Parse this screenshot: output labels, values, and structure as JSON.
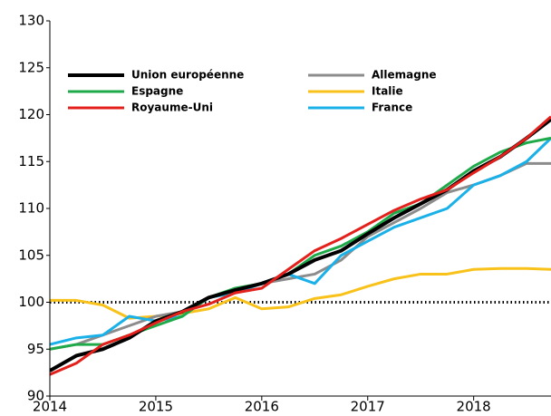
{
  "chart_data": {
    "type": "line",
    "x": [
      2014,
      2014.25,
      2014.5,
      2014.75,
      2015,
      2015.25,
      2015.5,
      2015.75,
      2016,
      2016.25,
      2016.5,
      2016.75,
      2017,
      2017.25,
      2017.5,
      2017.75,
      2018,
      2018.25,
      2018.5,
      2018.73
    ],
    "xlim": [
      2014,
      2018.73
    ],
    "xticks": [
      2014,
      2015,
      2016,
      2017,
      2018
    ],
    "ylim": [
      90,
      130
    ],
    "yticks": [
      90,
      95,
      100,
      105,
      110,
      115,
      120,
      125,
      130
    ],
    "reference_line": 100,
    "series": [
      {
        "name": "Italie",
        "color": "#f8c21a",
        "values": [
          100.2,
          100.2,
          99.7,
          98.3,
          98.5,
          98.8,
          99.3,
          100.5,
          99.3,
          99.5,
          100.4,
          100.8,
          101.7,
          102.5,
          103.0,
          103.0,
          103.5,
          103.6,
          103.6,
          103.5
        ]
      },
      {
        "name": "Allemagne",
        "color": "#8c8c8c",
        "values": [
          95.0,
          95.5,
          96.5,
          97.5,
          98.5,
          99.0,
          100.5,
          101.0,
          102.0,
          102.5,
          103.0,
          104.5,
          107.0,
          108.5,
          110.0,
          111.7,
          112.5,
          113.5,
          114.8,
          114.8
        ]
      },
      {
        "name": "France",
        "color": "#1ab0e8",
        "values": [
          95.5,
          96.2,
          96.5,
          98.5,
          98.0,
          98.5,
          100.5,
          101.0,
          102.0,
          103.0,
          102.0,
          105.0,
          106.5,
          108.0,
          109.0,
          110.0,
          112.5,
          113.5,
          115.0,
          117.5
        ]
      },
      {
        "name": "Espagne",
        "color": "#1faa4a",
        "values": [
          95.0,
          95.5,
          95.5,
          96.5,
          97.5,
          98.5,
          100.5,
          101.5,
          102.0,
          103.0,
          105.0,
          106.0,
          107.5,
          109.5,
          110.5,
          112.5,
          114.5,
          116.0,
          117.0,
          117.5
        ]
      },
      {
        "name": "Union européenne",
        "color": "#000000",
        "values": [
          92.7,
          94.3,
          95.0,
          96.2,
          98.0,
          99.0,
          100.5,
          101.3,
          102.0,
          103.0,
          104.5,
          105.5,
          107.3,
          109.0,
          110.5,
          112.0,
          114.0,
          115.5,
          117.5,
          119.5
        ]
      },
      {
        "name": "Royaume-Uni",
        "color": "#e3201b",
        "values": [
          92.3,
          93.5,
          95.5,
          96.5,
          97.8,
          99.0,
          99.8,
          101.0,
          101.5,
          103.5,
          105.5,
          106.8,
          108.3,
          109.8,
          111.0,
          112.0,
          113.8,
          115.5,
          117.5,
          119.8
        ]
      }
    ],
    "legend_order": [
      4,
      1,
      3,
      0,
      5,
      2
    ]
  }
}
